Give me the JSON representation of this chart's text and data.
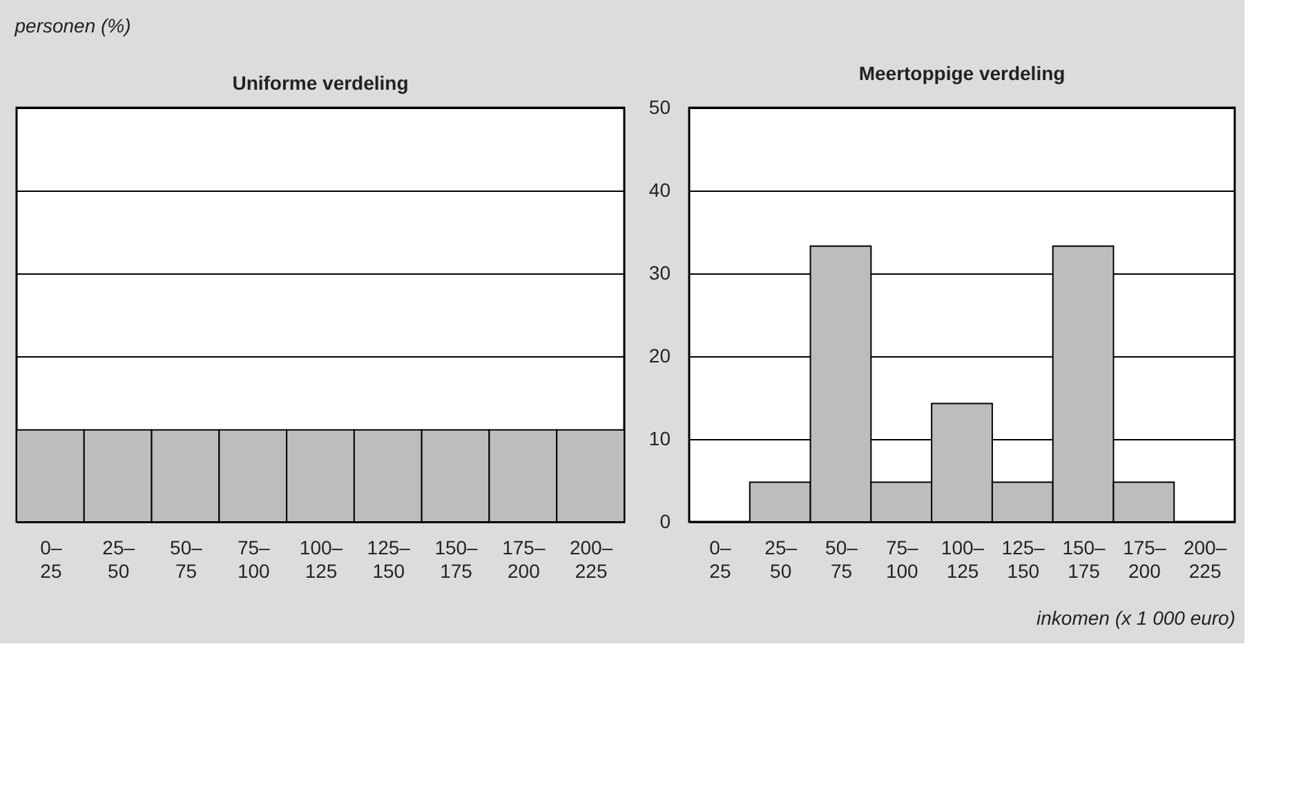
{
  "chart_data": [
    {
      "type": "bar",
      "title": "Uniforme verdeling",
      "ylabel": "personen (%)",
      "categories": [
        "0–25",
        "25–50",
        "50–75",
        "75–100",
        "100–125",
        "125–150",
        "150–175",
        "175–200",
        "200–225"
      ],
      "values": [
        11.1,
        11.1,
        11.1,
        11.1,
        11.1,
        11.1,
        11.1,
        11.1,
        11.1
      ],
      "color": "#bdbdbd",
      "ylim": [
        0,
        50
      ],
      "yticks": [
        0,
        10,
        20,
        30,
        40,
        50
      ],
      "grid": "y",
      "tick_labels": "x"
    },
    {
      "type": "bar",
      "title": "Meertoppige verdeling",
      "xlabel": "inkomen (x 1 000 euro)",
      "categories": [
        "0–25",
        "25–50",
        "50–75",
        "75–100",
        "100–125",
        "125–150",
        "150–175",
        "175–200",
        "200–225"
      ],
      "values": [
        0,
        4.8,
        33.3,
        4.8,
        14.3,
        4.8,
        33.3,
        4.8,
        0
      ],
      "color": "#bdbdbd",
      "ylim": [
        0,
        50
      ],
      "yticks": [
        0,
        10,
        20,
        30,
        40,
        50
      ],
      "grid": "y"
    }
  ]
}
